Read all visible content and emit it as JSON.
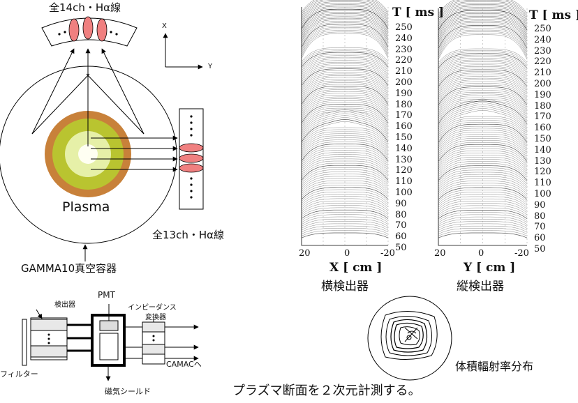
{
  "top_detector_label": "全14ch・Hα線",
  "side_detector_label": "全13ch・Hα線",
  "vessel_label": "GAMMA10真空容器",
  "plasma_label": "Plasma",
  "axis_x_label": "X",
  "axis_y_label": "Y",
  "plot_left": {
    "t_label": "T [ ms ]",
    "ticks": [
      "250",
      "240",
      "230",
      "220",
      "210",
      "200",
      "190",
      "180",
      "170",
      "160",
      "150",
      "140",
      "130",
      "120",
      "110",
      "100",
      "90",
      "80",
      "70",
      "60",
      "50"
    ],
    "x_ticks": [
      "20",
      "0",
      "-20"
    ],
    "axis_label": "X [ cm ]",
    "caption": "横検出器"
  },
  "plot_right": {
    "t_label": "T [ ms ]",
    "ticks": [
      "250",
      "240",
      "230",
      "220",
      "210",
      "200",
      "190",
      "180",
      "170",
      "160",
      "150",
      "140",
      "130",
      "120",
      "110",
      "100",
      "90",
      "80",
      "70",
      "60",
      "50"
    ],
    "x_ticks": [
      "20",
      "0",
      "-20"
    ],
    "axis_label": "Y [ cm ]",
    "caption": "縦検出器"
  },
  "circuit": {
    "detector_label": "検出器",
    "pmt_label": "PMT",
    "impedance_label_1": "インピーダンス",
    "impedance_label_2": "変換器",
    "camac_label": "CAMACへ",
    "filter_label": "フィルター",
    "shield_label": "磁気シールド"
  },
  "emissivity_label": "体積輻射率分布",
  "bottom_caption": "プラズマ断面を２次元計測する。",
  "colors": {
    "plasma_outer": "#c8813a",
    "plasma_mid": "#b9c430",
    "plasma_inner": "#e6f0a8",
    "plasma_core": "#fffff2",
    "chord_pink": "#f08080"
  }
}
